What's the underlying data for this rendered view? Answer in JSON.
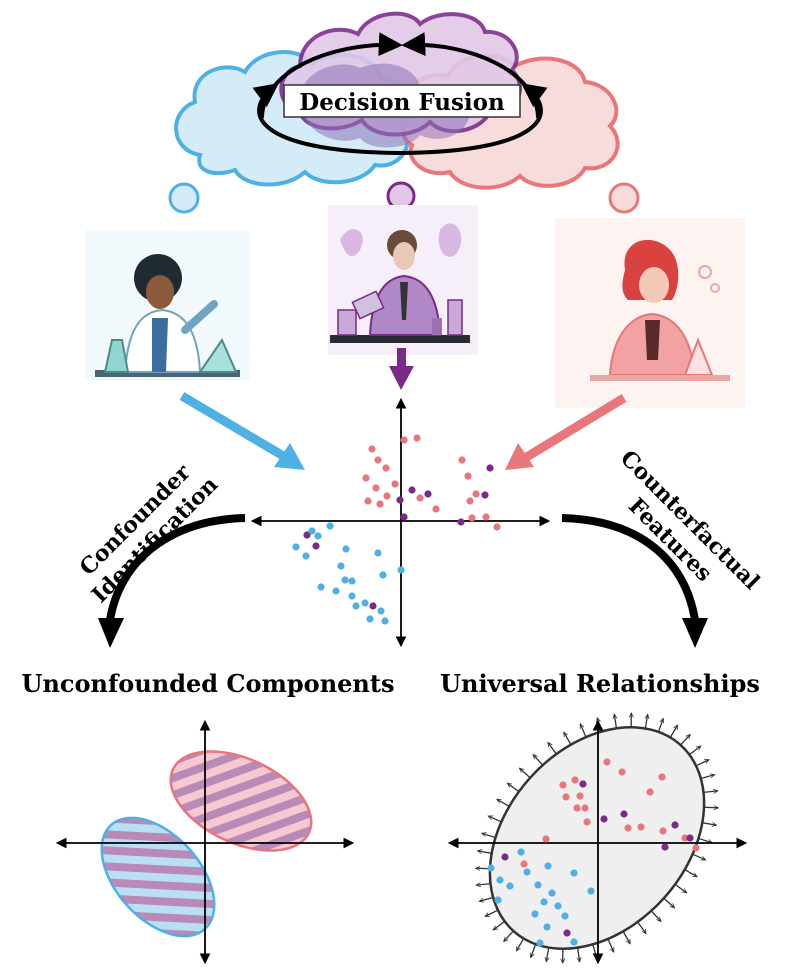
{
  "fusion_label": "Decision Fusion",
  "left_curve_label": [
    "Confounder",
    "Identification"
  ],
  "right_curve_label": [
    "Counterfactual",
    "Features"
  ],
  "left_heading": "Unconfounded Components",
  "right_heading": "Universal Relationships",
  "colors": {
    "blue": "#4fb0e6",
    "purple": "#7b2a8a",
    "red": "#e8767a",
    "cloud_blue": "#d3ecf8",
    "cloud_purple": "#e0c7e6",
    "cloud_red": "#f8dcdc",
    "ellipse_fill": "#efefef"
  },
  "scientists": [
    {
      "name": "left-scientist",
      "color": "blue"
    },
    {
      "name": "center-scientist",
      "color": "purple"
    },
    {
      "name": "right-scientist",
      "color": "red"
    }
  ]
}
